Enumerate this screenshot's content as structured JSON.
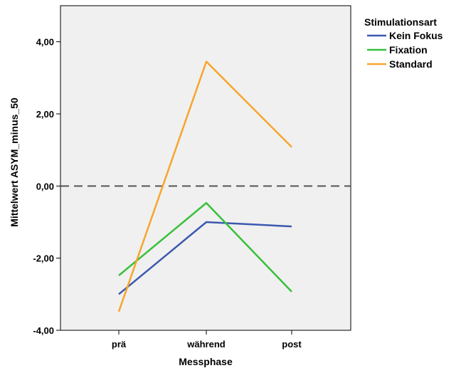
{
  "chart_data": {
    "type": "line",
    "title": "",
    "xlabel": "Messphase",
    "ylabel": "Mittelwert ASYM_minus_50",
    "categories": [
      "prä",
      "während",
      "post"
    ],
    "ylim": [
      -4,
      5
    ],
    "yticks": [
      4,
      2,
      0,
      -2,
      -4
    ],
    "ytick_labels": [
      "4,00",
      "2,00",
      "0,00",
      "-2,00",
      "-4,00"
    ],
    "reference_line": {
      "y": 0,
      "style": "dashed"
    },
    "grid": false,
    "plot_background": "#f0f0f0",
    "legend": {
      "title": "Stimulationsart",
      "placement": "right"
    },
    "series": [
      {
        "name": "Kein Fokus",
        "color": "#3d58b0",
        "values": [
          -3.0,
          -1.0,
          -1.12
        ]
      },
      {
        "name": "Fixation",
        "color": "#37c03b",
        "values": [
          -2.48,
          -0.47,
          -2.93
        ]
      },
      {
        "name": "Standard",
        "color": "#f7a52c",
        "values": [
          -3.48,
          3.45,
          1.08
        ]
      }
    ]
  }
}
